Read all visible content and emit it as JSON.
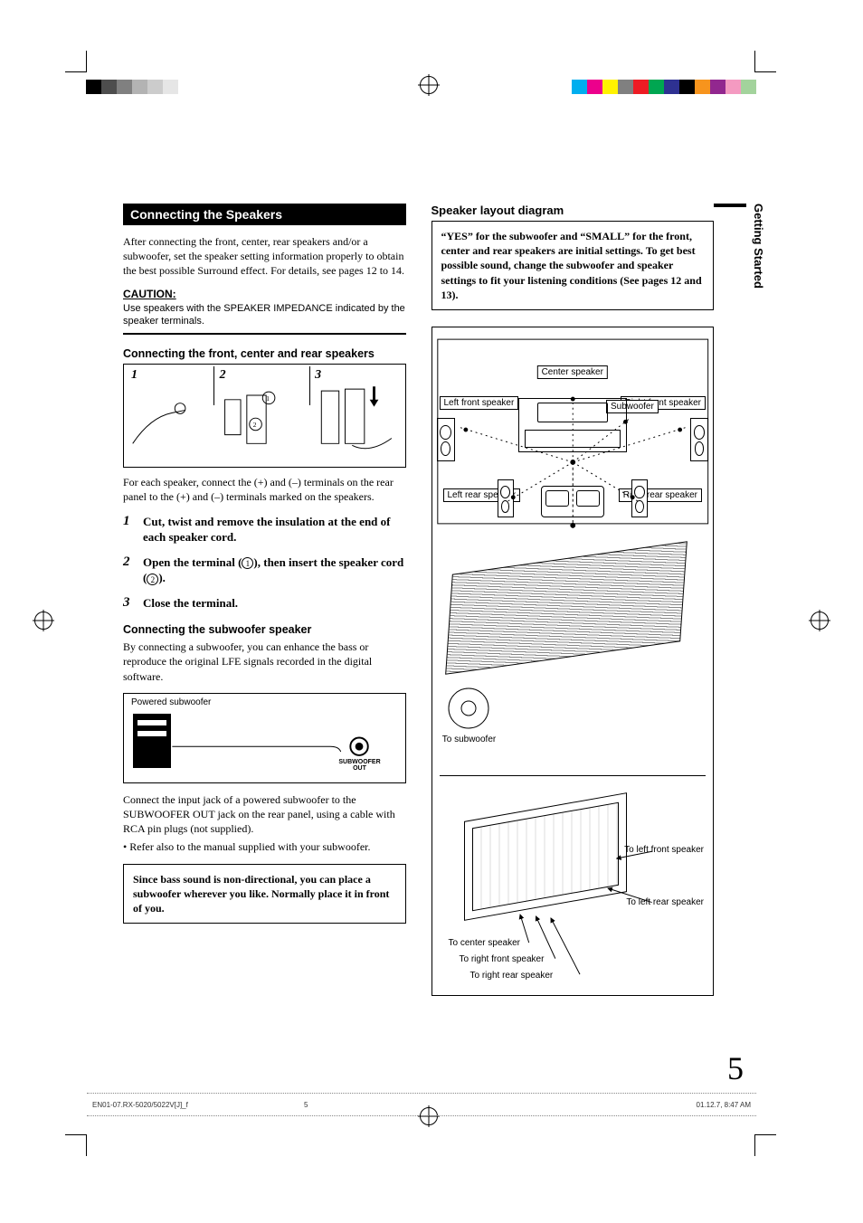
{
  "page_number": "5",
  "side_tab": "Getting Started",
  "footer": {
    "file": "EN01-07.RX-5020/5022V[J]_f",
    "page": "5",
    "timestamp": "01.12.7, 8:47 AM"
  },
  "reg_colors_left": [
    "#000000",
    "#4d4d4d",
    "#808080",
    "#b3b3b3",
    "#cccccc",
    "#e6e6e6",
    "#ffffff",
    "#ffffff",
    "#ffffff",
    "#ffffff",
    "#ffffff",
    "#ffffff"
  ],
  "reg_colors_right": [
    "#00aeef",
    "#ec008c",
    "#fff200",
    "#808080",
    "#ed1c24",
    "#00a651",
    "#2e3192",
    "#000000",
    "#f7941d",
    "#92278f",
    "#f49ac1",
    "#a3d39c"
  ],
  "left_col": {
    "heading": "Connecting the Speakers",
    "intro": "After connecting the front, center, rear speakers and/or a subwoofer, set the speaker setting information properly to obtain the best possible Surround effect. For details, see pages 12 to 14.",
    "caution_heading": "CAUTION:",
    "caution_body": "Use speakers with the SPEAKER IMPEDANCE indicated by the speaker terminals.",
    "sub1_heading": "Connecting the front, center and rear speakers",
    "fig_steps": {
      "s1": "1",
      "s2": "2",
      "s3": "3"
    },
    "fig_circles": {
      "c1": "1",
      "c2": "2"
    },
    "fig_caption": "For each speaker, connect the (+) and (–) terminals on the rear panel to the (+) and (–) terminals marked on the speakers.",
    "steps": [
      {
        "n": "1",
        "t": "Cut, twist and remove the insulation at the end of each speaker cord."
      },
      {
        "n": "2",
        "t_pre": "Open the terminal (",
        "c1": "1",
        "t_mid": "), then insert the speaker cord (",
        "c2": "2",
        "t_post": ")."
      },
      {
        "n": "3",
        "t": "Close the terminal."
      }
    ],
    "sub2_heading": "Connecting the subwoofer speaker",
    "sub2_intro": "By connecting a subwoofer, you can enhance the bass or reproduce the original LFE signals recorded in the digital software.",
    "sub2_fig_label": "Powered subwoofer",
    "sub2_fig_jack": "SUBWOOFER OUT",
    "sub2_para": "Connect the input jack of a powered subwoofer to the SUBWOOFER OUT jack on the rear panel, using a cable with RCA pin plugs (not supplied).",
    "sub2_bullet": "• Refer also to the manual supplied with your subwoofer.",
    "sub2_note": "Since bass sound is non-directional, you can place a subwoofer wherever you like. Normally place it in front of you."
  },
  "right_col": {
    "heading": "Speaker layout diagram",
    "info": "“YES” for the subwoofer and “SMALL” for the front, center and rear speakers are initial settings. To get best possible sound, change the subwoofer and speaker settings to fit your listening conditions (See pages 12 and 13).",
    "labels": {
      "center": "Center speaker",
      "lf": "Left front speaker",
      "rf": "Right front speaker",
      "sub": "Subwoofer",
      "lr": "Left rear speaker",
      "rr": "Right rear speaker",
      "to_sub": "To subwoofer",
      "to_lf": "To left front speaker",
      "to_lr": "To left rear speaker",
      "to_c": "To center speaker",
      "to_rf": "To right front speaker",
      "to_rr": "To right  rear speaker"
    }
  }
}
